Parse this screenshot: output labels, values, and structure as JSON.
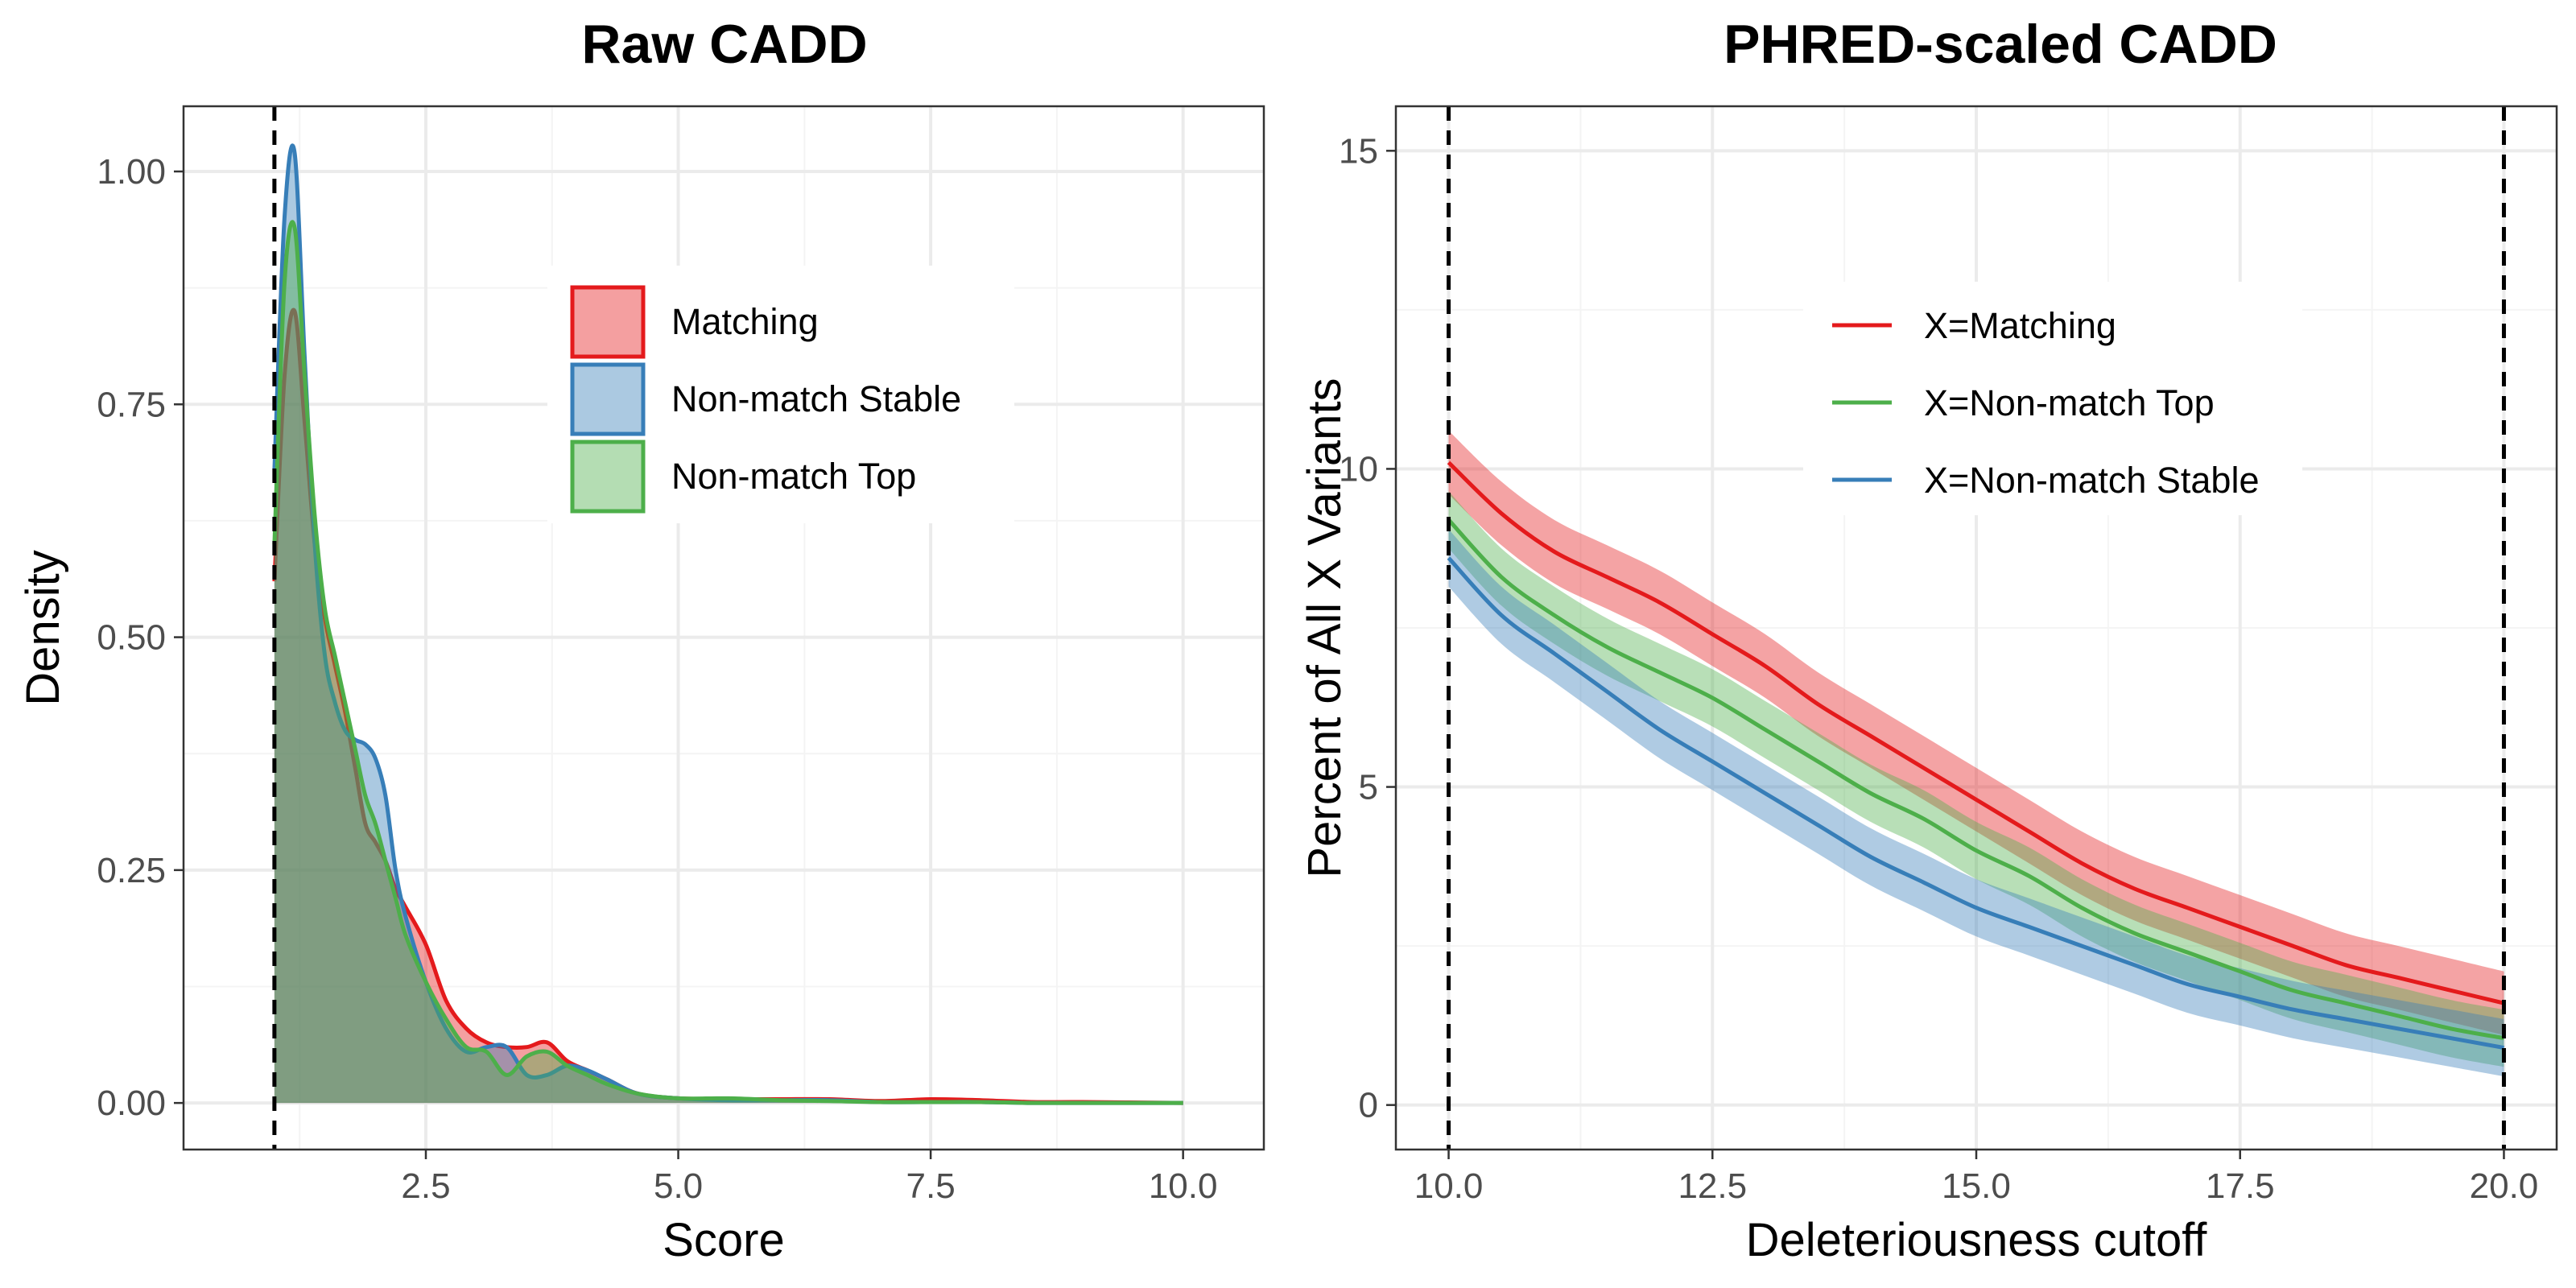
{
  "chart_data": [
    {
      "type": "area",
      "title": "Raw CADD",
      "xlabel": "Score",
      "ylabel": "Density",
      "xlim": [
        0.1,
        10.8
      ],
      "ylim": [
        -0.05,
        1.07
      ],
      "xticks": [
        {
          "value": 2.5,
          "label": "2.5"
        },
        {
          "value": 5.0,
          "label": "5.0"
        },
        {
          "value": 7.5,
          "label": "7.5"
        },
        {
          "value": 10.0,
          "label": "10.0"
        }
      ],
      "yticks": [
        {
          "value": 0.0,
          "label": "0.00"
        },
        {
          "value": 0.25,
          "label": "0.25"
        },
        {
          "value": 0.5,
          "label": "0.50"
        },
        {
          "value": 0.75,
          "label": "0.75"
        },
        {
          "value": 1.0,
          "label": "1.00"
        }
      ],
      "vlines": [
        1.0
      ],
      "grid": true,
      "legend_position": "top-center",
      "legend": [
        "Matching",
        "Non-match Stable",
        "Non-match Top"
      ],
      "series": [
        {
          "name": "Matching",
          "color": "#e41a1c",
          "x": [
            1.0,
            1.1,
            1.2,
            1.3,
            1.4,
            1.5,
            1.6,
            1.7,
            1.8,
            1.9,
            2.0,
            2.1,
            2.2,
            2.3,
            2.5,
            2.7,
            2.9,
            3.1,
            3.3,
            3.5,
            3.7,
            3.9,
            4.1,
            4.3,
            4.6,
            5.0,
            5.5,
            6.0,
            6.5,
            7.0,
            7.5,
            8.0,
            8.5,
            9.0,
            10.0
          ],
          "y": [
            0.56,
            0.78,
            0.85,
            0.73,
            0.6,
            0.52,
            0.47,
            0.42,
            0.36,
            0.3,
            0.28,
            0.26,
            0.23,
            0.21,
            0.17,
            0.11,
            0.08,
            0.065,
            0.06,
            0.06,
            0.065,
            0.045,
            0.035,
            0.025,
            0.01,
            0.005,
            0.004,
            0.004,
            0.004,
            0.002,
            0.004,
            0.003,
            0.001,
            0.001,
            0.0
          ]
        },
        {
          "name": "Non-match Stable",
          "color": "#377eb8",
          "x": [
            1.0,
            1.1,
            1.2,
            1.3,
            1.4,
            1.5,
            1.6,
            1.7,
            1.8,
            1.9,
            2.0,
            2.1,
            2.2,
            2.3,
            2.5,
            2.7,
            2.9,
            3.1,
            3.3,
            3.5,
            3.7,
            3.9,
            4.1,
            4.3,
            4.6,
            5.0,
            5.5,
            6.0,
            6.5,
            7.0,
            7.5,
            8.0,
            8.5,
            9.0,
            10.0
          ],
          "y": [
            0.68,
            0.95,
            1.02,
            0.8,
            0.6,
            0.48,
            0.43,
            0.4,
            0.39,
            0.385,
            0.37,
            0.33,
            0.25,
            0.2,
            0.13,
            0.08,
            0.055,
            0.06,
            0.06,
            0.03,
            0.03,
            0.04,
            0.035,
            0.025,
            0.01,
            0.005,
            0.003,
            0.003,
            0.003,
            0.001,
            0.001,
            0.001,
            0.0,
            0.0,
            0.0
          ]
        },
        {
          "name": "Non-match Top",
          "color": "#4daf4a",
          "x": [
            1.0,
            1.1,
            1.2,
            1.3,
            1.4,
            1.5,
            1.6,
            1.7,
            1.8,
            1.9,
            2.0,
            2.1,
            2.2,
            2.3,
            2.5,
            2.7,
            2.9,
            3.1,
            3.3,
            3.5,
            3.7,
            3.9,
            4.1,
            4.3,
            4.6,
            5.0,
            5.5,
            6.0,
            6.5,
            7.0,
            7.5,
            8.0,
            8.5,
            9.0,
            10.0
          ],
          "y": [
            0.6,
            0.88,
            0.94,
            0.78,
            0.63,
            0.53,
            0.48,
            0.43,
            0.38,
            0.33,
            0.3,
            0.26,
            0.22,
            0.18,
            0.13,
            0.09,
            0.06,
            0.055,
            0.03,
            0.05,
            0.055,
            0.04,
            0.03,
            0.02,
            0.01,
            0.005,
            0.005,
            0.003,
            0.002,
            0.001,
            0.001,
            0.001,
            0.0,
            0.0,
            0.0
          ]
        }
      ]
    },
    {
      "type": "line",
      "title": "PHRED-scaled CADD",
      "xlabel": "Deleteriousness cutoff",
      "ylabel": "Percent of All X Variants",
      "xlim": [
        9.5,
        20.5
      ],
      "ylim": [
        -0.7,
        15.7
      ],
      "xticks": [
        {
          "value": 10.0,
          "label": "10.0"
        },
        {
          "value": 12.5,
          "label": "12.5"
        },
        {
          "value": 15.0,
          "label": "15.0"
        },
        {
          "value": 17.5,
          "label": "17.5"
        },
        {
          "value": 20.0,
          "label": "20.0"
        }
      ],
      "yticks": [
        {
          "value": 0,
          "label": "0"
        },
        {
          "value": 5,
          "label": "5"
        },
        {
          "value": 10,
          "label": "10"
        },
        {
          "value": 15,
          "label": "15"
        }
      ],
      "vlines": [
        10.0,
        20.0
      ],
      "grid": true,
      "legend_position": "top-center",
      "legend": [
        "X=Matching",
        "X=Non-match Top",
        "X=Non-match Stable"
      ],
      "x": [
        10.0,
        10.5,
        11.0,
        11.5,
        12.0,
        12.5,
        13.0,
        13.5,
        14.0,
        14.5,
        15.0,
        15.5,
        16.0,
        16.5,
        17.0,
        17.5,
        18.0,
        18.5,
        19.0,
        19.5,
        20.0
      ],
      "series": [
        {
          "name": "X=Matching",
          "color": "#e41a1c",
          "y": [
            10.1,
            9.3,
            8.7,
            8.3,
            7.9,
            7.4,
            6.9,
            6.3,
            5.8,
            5.3,
            4.8,
            4.3,
            3.8,
            3.4,
            3.1,
            2.8,
            2.5,
            2.2,
            2.0,
            1.8,
            1.6
          ],
          "band": 0.5
        },
        {
          "name": "X=Non-match Top",
          "color": "#4daf4a",
          "y": [
            9.2,
            8.3,
            7.7,
            7.2,
            6.8,
            6.4,
            5.9,
            5.4,
            4.9,
            4.5,
            4.0,
            3.6,
            3.1,
            2.7,
            2.4,
            2.1,
            1.8,
            1.6,
            1.4,
            1.2,
            1.05
          ],
          "band": 0.45
        },
        {
          "name": "X=Non-match Stable",
          "color": "#377eb8",
          "y": [
            8.6,
            7.7,
            7.1,
            6.5,
            5.9,
            5.4,
            4.9,
            4.4,
            3.9,
            3.5,
            3.1,
            2.8,
            2.5,
            2.2,
            1.9,
            1.7,
            1.5,
            1.35,
            1.2,
            1.05,
            0.9
          ],
          "band": 0.45
        }
      ]
    }
  ]
}
